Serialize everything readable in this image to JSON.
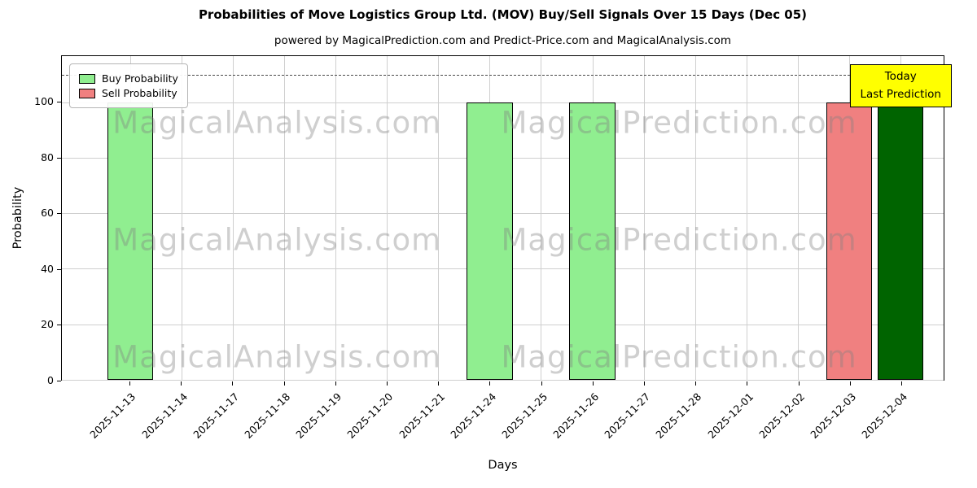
{
  "chart_data": {
    "type": "bar",
    "title": "Probabilities of Move Logistics Group Ltd. (MOV) Buy/Sell Signals Over 15 Days (Dec 05)",
    "subtitle": "powered by MagicalPrediction.com and Predict-Price.com and MagicalAnalysis.com",
    "xlabel": "Days",
    "ylabel": "Probability",
    "ylim": [
      0,
      116.6
    ],
    "yticks": [
      0,
      20,
      40,
      60,
      80,
      100
    ],
    "grid": true,
    "legend_loc": "upper left",
    "categories": [
      "2025-11-13",
      "2025-11-14",
      "2025-11-17",
      "2025-11-18",
      "2025-11-19",
      "2025-11-20",
      "2025-11-21",
      "2025-11-24",
      "2025-11-25",
      "2025-11-26",
      "2025-11-27",
      "2025-11-28",
      "2025-12-01",
      "2025-12-02",
      "2025-12-03",
      "2025-12-04"
    ],
    "series": [
      {
        "name": "Buy Probability",
        "type": "buy",
        "color": "#90ee90",
        "values": [
          100,
          0,
          0,
          0,
          0,
          0,
          0,
          100,
          0,
          100,
          0,
          0,
          0,
          0,
          0,
          0
        ]
      },
      {
        "name": "Sell Probability",
        "type": "sell",
        "color": "#f08080",
        "values": [
          0,
          0,
          0,
          0,
          0,
          0,
          0,
          0,
          0,
          0,
          0,
          0,
          0,
          0,
          100,
          0
        ]
      },
      {
        "name": "Today Last Prediction",
        "type": "today-buy",
        "color": "#006400",
        "values": [
          0,
          0,
          0,
          0,
          0,
          0,
          0,
          0,
          0,
          0,
          0,
          0,
          0,
          0,
          0,
          100
        ]
      }
    ],
    "dashed_line_y": 110,
    "legend": [
      {
        "label": "Buy Probability",
        "color": "#90ee90"
      },
      {
        "label": "Sell Probability",
        "color": "#f08080"
      }
    ],
    "annotation": {
      "line1": "Today",
      "line2": "Last Prediction",
      "bg": "#ffff00"
    },
    "watermarks": [
      "MagicalAnalysis.com",
      "MagicalPrediction.com"
    ]
  }
}
